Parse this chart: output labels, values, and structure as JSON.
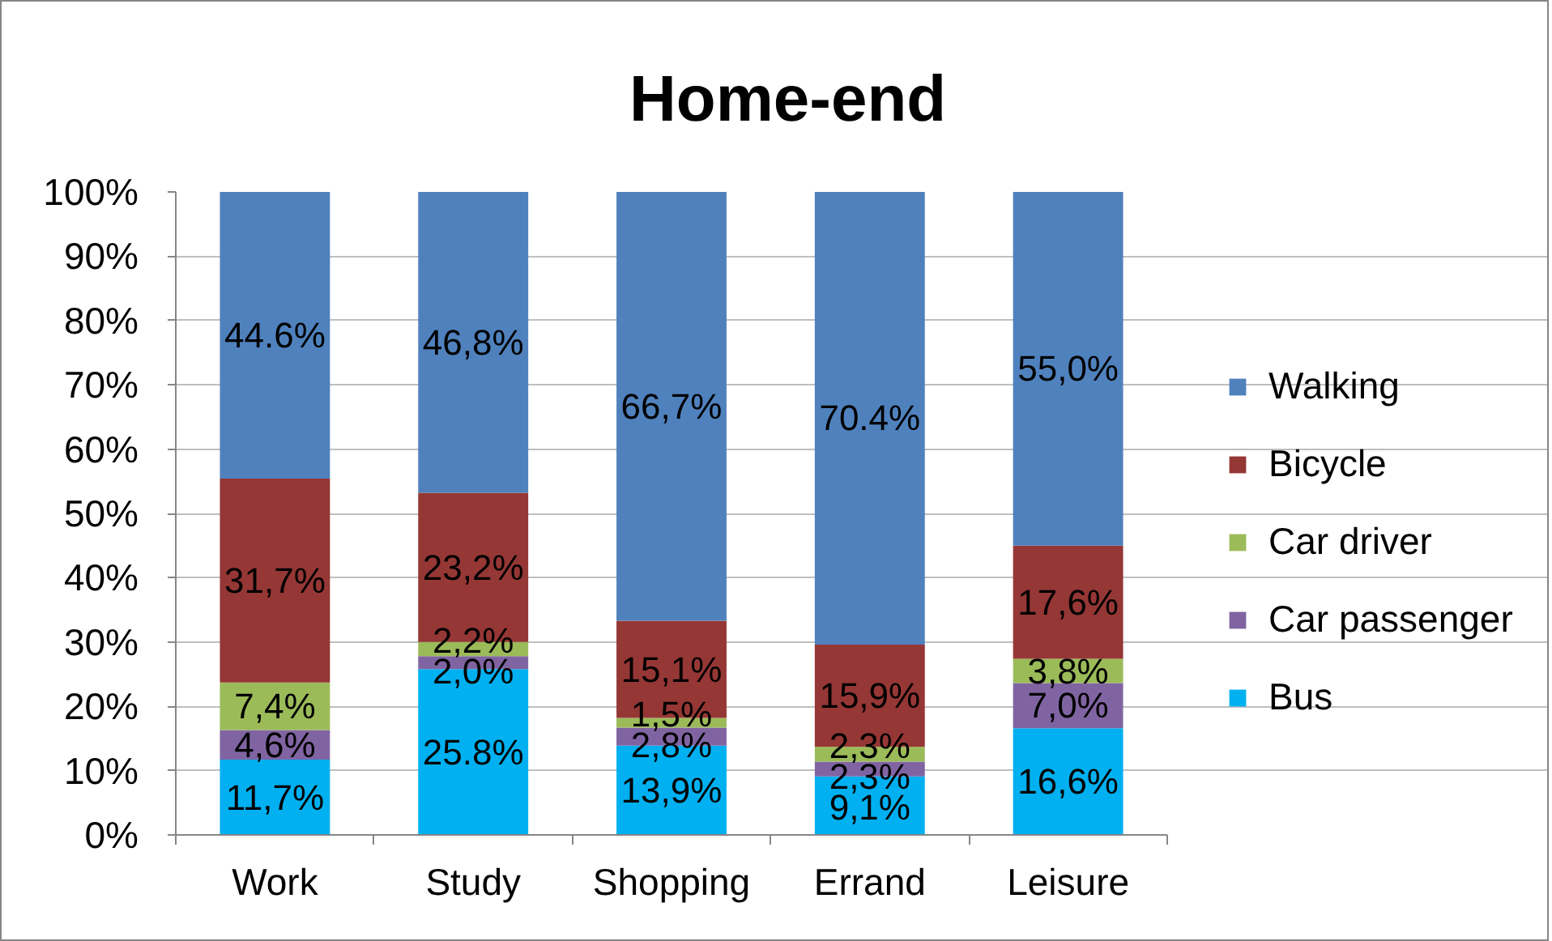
{
  "chart_data": {
    "type": "bar",
    "title": "Home-end",
    "categories": [
      "Work",
      "Study",
      "Shopping",
      "Errand",
      "Leisure"
    ],
    "stacked": true,
    "ylim": [
      0,
      100
    ],
    "yticks": [
      {
        "value": 0,
        "label": "0%"
      },
      {
        "value": 10,
        "label": "10%"
      },
      {
        "value": 20,
        "label": "20%"
      },
      {
        "value": 30,
        "label": "30%"
      },
      {
        "value": 40,
        "label": "40%"
      },
      {
        "value": 50,
        "label": "50%"
      },
      {
        "value": 60,
        "label": "60%"
      },
      {
        "value": 70,
        "label": "70%"
      },
      {
        "value": 80,
        "label": "80%"
      },
      {
        "value": 90,
        "label": "90%"
      },
      {
        "value": 100,
        "label": "100%"
      }
    ],
    "grid": "y",
    "legend": "right",
    "series": [
      {
        "name": "Bus",
        "color": "#00b0f0",
        "values": [
          11.7,
          25.8,
          13.9,
          9.1,
          16.6
        ],
        "value_labels": [
          "11,7%",
          "25.8%",
          "13,9%",
          "9,1%",
          "16,6%"
        ]
      },
      {
        "name": "Car passenger",
        "color": "#8064a2",
        "values": [
          4.6,
          2.0,
          2.8,
          2.3,
          7.0
        ],
        "value_labels": [
          "4,6%",
          "2,0%",
          "2,8%",
          "2,3%",
          "7,0%"
        ]
      },
      {
        "name": "Car driver",
        "color": "#9bbb59",
        "values": [
          7.4,
          2.2,
          1.5,
          2.3,
          3.8
        ],
        "value_labels": [
          "7,4%",
          "2,2%",
          "1,5%",
          "2,3%",
          "3,8%"
        ]
      },
      {
        "name": "Bicycle",
        "color": "#953735",
        "values": [
          31.7,
          23.2,
          15.1,
          15.9,
          17.6
        ],
        "value_labels": [
          "31,7%",
          "23,2%",
          "15,1%",
          "15,9%",
          "17,6%"
        ]
      },
      {
        "name": "Walking",
        "color": "#4f81bd",
        "values": [
          44.6,
          46.8,
          66.7,
          70.4,
          55.0
        ],
        "value_labels": [
          "44.6%",
          "46,8%",
          "66,7%",
          "70.4%",
          "55,0%"
        ]
      }
    ]
  }
}
